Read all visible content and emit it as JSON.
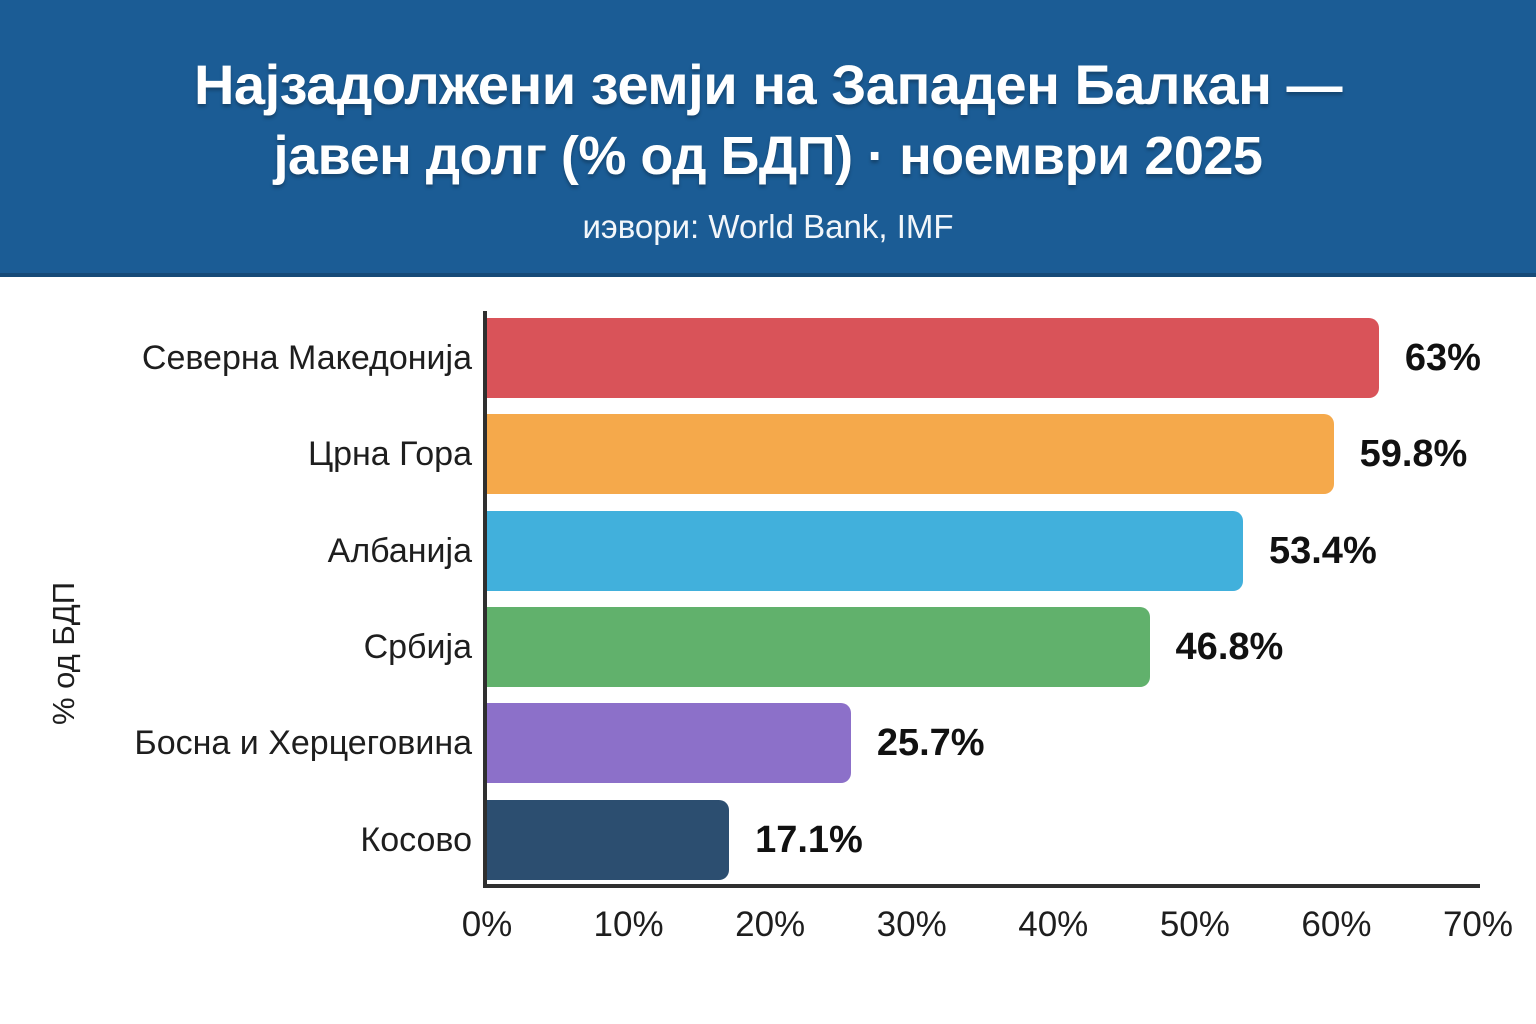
{
  "header": {
    "title_line1": "Најзадолжени земји на Западен Балкан —",
    "title_line2_main": "јавен долг (% од БДП)",
    "title_line2_suffix": " · ноември 2025",
    "subtitle": "иэвори: World Bank, IMF",
    "bg_color": "#1B5C95"
  },
  "chart_data": {
    "type": "bar",
    "orientation": "horizontal",
    "title": "Најзадолжени земји на Западен Балкан — јавен долг (% од БДП) · ноември 2025",
    "subtitle": "иэвори: World Bank, IMF",
    "categories": [
      "Северна Македонија",
      "Црна Гора",
      "Албанија",
      "Србија",
      "Босна и Херцеговина",
      "Косово"
    ],
    "values": [
      63,
      59.8,
      53.4,
      46.8,
      25.7,
      17.1
    ],
    "value_labels": [
      "63%",
      "59.8%",
      "53.4%",
      "46.8%",
      "25.7%",
      "17.1%"
    ],
    "bar_colors": [
      "#D95359",
      "#F5A94B",
      "#41B0DC",
      "#61B16C",
      "#8C70C9",
      "#2C4E70"
    ],
    "xlabel": "",
    "ylabel": "% од БДП",
    "xlim": [
      0,
      70
    ],
    "x_tick_labels": [
      "0%",
      "10%",
      "20%",
      "30%",
      "40%",
      "50%",
      "60%",
      "70%"
    ],
    "grid": false,
    "legend": "none",
    "axis_color": "#2f2f2f"
  }
}
